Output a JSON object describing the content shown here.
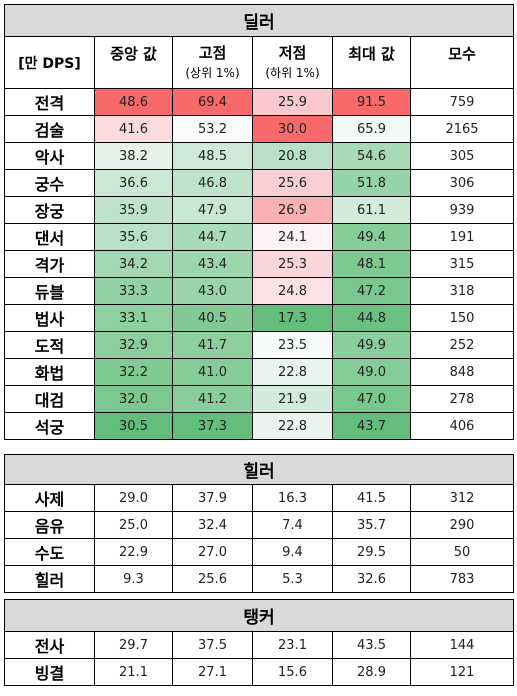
{
  "dealer": {
    "title": "딜러",
    "unit_label": "[만 DPS]",
    "columns": {
      "median": "중앙 값",
      "high": "고점",
      "high_sub": "(상위 1%)",
      "low": "저점",
      "low_sub": "(하위 1%)",
      "max": "최대 값",
      "count": "모수"
    },
    "rows": [
      {
        "name": "전격",
        "median": "48.6",
        "high": "69.4",
        "low": "25.9",
        "max": "91.5",
        "count": "759"
      },
      {
        "name": "검술",
        "median": "41.6",
        "high": "53.2",
        "low": "30.0",
        "max": "65.9",
        "count": "2165"
      },
      {
        "name": "악사",
        "median": "38.2",
        "high": "48.5",
        "low": "20.8",
        "max": "54.6",
        "count": "305"
      },
      {
        "name": "궁수",
        "median": "36.6",
        "high": "46.8",
        "low": "25.6",
        "max": "51.8",
        "count": "306"
      },
      {
        "name": "장궁",
        "median": "35.9",
        "high": "47.9",
        "low": "26.9",
        "max": "61.1",
        "count": "939"
      },
      {
        "name": "댄서",
        "median": "35.6",
        "high": "44.7",
        "low": "24.1",
        "max": "49.4",
        "count": "191"
      },
      {
        "name": "격가",
        "median": "34.2",
        "high": "43.4",
        "low": "25.3",
        "max": "48.1",
        "count": "315"
      },
      {
        "name": "듀블",
        "median": "33.3",
        "high": "43.0",
        "low": "24.8",
        "max": "47.2",
        "count": "318"
      },
      {
        "name": "법사",
        "median": "33.1",
        "high": "40.5",
        "low": "17.3",
        "max": "44.8",
        "count": "150"
      },
      {
        "name": "도적",
        "median": "32.9",
        "high": "41.7",
        "low": "23.5",
        "max": "49.9",
        "count": "252"
      },
      {
        "name": "화법",
        "median": "32.2",
        "high": "41.0",
        "low": "22.8",
        "max": "49.0",
        "count": "848"
      },
      {
        "name": "대검",
        "median": "32.0",
        "high": "41.2",
        "low": "21.9",
        "max": "47.0",
        "count": "278"
      },
      {
        "name": "석궁",
        "median": "30.5",
        "high": "37.3",
        "low": "22.8",
        "max": "43.7",
        "count": "406"
      }
    ]
  },
  "healer": {
    "title": "힐러",
    "rows": [
      {
        "name": "사제",
        "median": "29.0",
        "high": "37.9",
        "low": "16.3",
        "max": "41.5",
        "count": "312"
      },
      {
        "name": "음유",
        "median": "25.0",
        "high": "32.4",
        "low": "7.4",
        "max": "35.7",
        "count": "290"
      },
      {
        "name": "수도",
        "median": "22.9",
        "high": "27.0",
        "low": "9.4",
        "max": "29.5",
        "count": "50"
      },
      {
        "name": "힐러",
        "median": "9.3",
        "high": "25.6",
        "low": "5.3",
        "max": "32.6",
        "count": "783"
      }
    ]
  },
  "tank": {
    "title": "탱커",
    "rows": [
      {
        "name": "전사",
        "median": "29.7",
        "high": "37.5",
        "low": "23.1",
        "max": "43.5",
        "count": "144"
      },
      {
        "name": "빙결",
        "median": "21.1",
        "high": "27.1",
        "low": "15.6",
        "max": "28.9",
        "count": "121"
      }
    ]
  },
  "colors": {
    "high": "#f8696b",
    "mid": "#fcfcff",
    "low": "#63be7b",
    "title_bg": "#d9d9d9"
  }
}
